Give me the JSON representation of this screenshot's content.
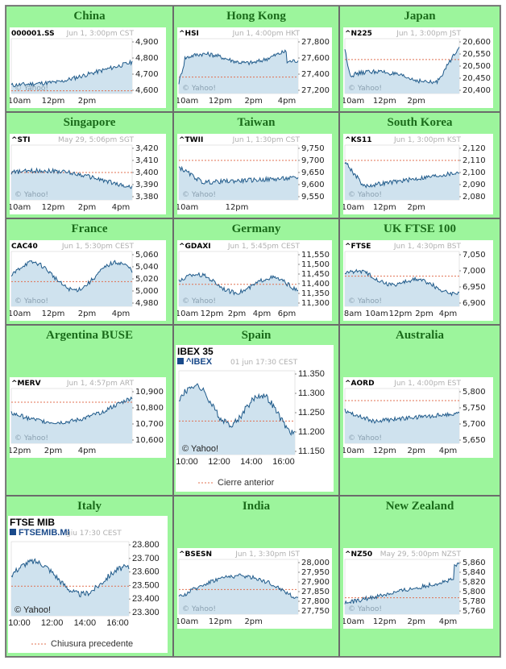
{
  "colors": {
    "background": "#9cf59c",
    "region_title": "#1a6b1a",
    "line": "#1f5a8a",
    "fill": "#cfe2ee",
    "prev_close": "#e07050"
  },
  "markets": [
    {
      "region": "China",
      "symbol": "000001.SS",
      "stamp": "Jun 1, 3:00pm CST",
      "y_ticks": [
        "4,900",
        "4,800",
        "4,700",
        "4,600"
      ],
      "x_ticks": [
        "10am",
        "12pm",
        "2pm"
      ],
      "watermark": "© Yahoo!"
    },
    {
      "region": "Hong Kong",
      "symbol": "^HSI",
      "stamp": "Jun 1, 4:00pm HKT",
      "y_ticks": [
        "27,800",
        "27,600",
        "27,400",
        "27,200"
      ],
      "x_ticks": [
        "10am",
        "12pm",
        "2pm",
        "4pm"
      ],
      "watermark": "© Yahoo!"
    },
    {
      "region": "Japan",
      "symbol": "^N225",
      "stamp": "Jun 1, 3:00pm JST",
      "y_ticks": [
        "20,600",
        "20,550",
        "20,500",
        "20,450",
        "20,400"
      ],
      "x_ticks": [
        "10am",
        "12pm",
        "2pm"
      ],
      "watermark": "© Yahoo!"
    },
    {
      "region": "Singapore",
      "symbol": "^STI",
      "stamp": "May 29, 5:06pm SGT",
      "y_ticks": [
        "3,420",
        "3,410",
        "3,400",
        "3,390",
        "3,380"
      ],
      "x_ticks": [
        "10am",
        "12pm",
        "2pm",
        "4pm"
      ],
      "watermark": "© Yahoo!"
    },
    {
      "region": "Taiwan",
      "symbol": "^TWII",
      "stamp": "Jun 1, 1:30pm CST",
      "y_ticks": [
        "9,750",
        "9,700",
        "9,650",
        "9,600",
        "9,550"
      ],
      "x_ticks": [
        "10am",
        "12pm"
      ],
      "watermark": "© Yahoo!"
    },
    {
      "region": "South Korea",
      "symbol": "^KS11",
      "stamp": "Jun 1, 3:00pm KST",
      "y_ticks": [
        "2,120",
        "2,110",
        "2,100",
        "2,090",
        "2,080"
      ],
      "x_ticks": [
        "10am",
        "12pm",
        "2pm"
      ],
      "watermark": "© Yahoo!"
    },
    {
      "region": "France",
      "symbol": "CAC40",
      "stamp": "Jun 1, 5:30pm CEST",
      "y_ticks": [
        "5,060",
        "5,040",
        "5,020",
        "5,000",
        "4,980"
      ],
      "x_ticks": [
        "10am",
        "12pm",
        "2pm",
        "4pm"
      ],
      "watermark": "© Yahoo!"
    },
    {
      "region": "Germany",
      "symbol": "^GDAXI",
      "stamp": "Jun 1, 5:45pm CEST",
      "y_ticks": [
        "11,550",
        "11,500",
        "11,450",
        "11,400",
        "11,350",
        "11,300"
      ],
      "x_ticks": [
        "10am",
        "12pm",
        "2pm",
        "4pm",
        "6pm"
      ],
      "watermark": "© Yahoo!"
    },
    {
      "region": "UK FTSE 100",
      "symbol": "^FTSE",
      "stamp": "Jun 1, 4:30pm BST",
      "y_ticks": [
        "7,050",
        "7,000",
        "6,950",
        "6,900"
      ],
      "x_ticks": [
        "8am",
        "10am",
        "12pm",
        "2pm",
        "4pm"
      ],
      "watermark": "© Yahoo!"
    },
    {
      "region": "Argentina BUSE",
      "symbol": "^MERV",
      "stamp": "Jun 1, 4:57pm ART",
      "y_ticks": [
        "10,900",
        "10,800",
        "10,700",
        "10,600"
      ],
      "x_ticks": [
        "12pm",
        "2pm",
        "4pm"
      ],
      "watermark": "© Yahoo!"
    },
    {
      "region": "Spain",
      "title": "IBEX 35",
      "symbol": "^IBEX",
      "stamp": "01 jun 17:30 CEST",
      "y_ticks": [
        "11.350",
        "11.300",
        "11.250",
        "11.200",
        "11.150"
      ],
      "x_ticks": [
        "10:00",
        "12:00",
        "14:00",
        "16:00"
      ],
      "watermark": "© Yahoo!",
      "legend": "Cierre anterior"
    },
    {
      "region": "Australia",
      "symbol": "^AORD",
      "stamp": "Jun 1, 4:00pm EST",
      "y_ticks": [
        "5,800",
        "5,750",
        "5,700",
        "5,650"
      ],
      "x_ticks": [
        "10am",
        "12pm",
        "2pm",
        "4pm"
      ],
      "watermark": "© Yahoo!"
    },
    {
      "region": "Italy",
      "title": "FTSE MIB",
      "symbol": "FTSEMIB.MI",
      "stamp": "giu 17:30 CEST",
      "y_ticks": [
        "23.800",
        "23.700",
        "23.600",
        "23.500",
        "23.400",
        "23.300"
      ],
      "x_ticks": [
        "10:00",
        "12:00",
        "14:00",
        "16:00"
      ],
      "watermark": "© Yahoo!",
      "legend": "Chiusura precedente"
    },
    {
      "region": "India",
      "symbol": "^BSESN",
      "stamp": "Jun 1, 3:30pm IST",
      "y_ticks": [
        "28,000",
        "27,950",
        "27,900",
        "27,850",
        "27,800",
        "27,750"
      ],
      "x_ticks": [
        "10am",
        "12pm",
        "2pm"
      ],
      "watermark": "© Yahoo!"
    },
    {
      "region": "New Zealand",
      "symbol": "^NZ50",
      "stamp": "May 29, 5:00pm NZST",
      "y_ticks": [
        "5,860",
        "5,840",
        "5,820",
        "5,800",
        "5,780",
        "5,760"
      ],
      "x_ticks": [
        "10am",
        "12pm",
        "2pm",
        "4pm"
      ],
      "watermark": "© Yahoo!"
    }
  ]
}
